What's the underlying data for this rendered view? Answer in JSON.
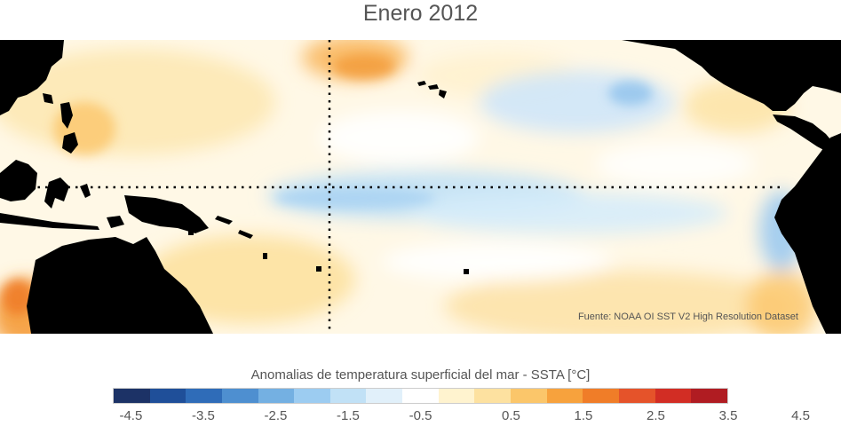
{
  "title": "Enero 2012",
  "source": "Fuente: NOAA OI SST V2 High Resolution Dataset",
  "colorbar": {
    "label": "Anomalias de temperatura superficial del mar - SSTA  [°C]",
    "colors": [
      "#1c3266",
      "#1f4f99",
      "#2f6cb8",
      "#4e8fd0",
      "#74b0e2",
      "#9cccf1",
      "#c1e1f6",
      "#e1f0fa",
      "#ffffff",
      "#fff3cf",
      "#fde1a0",
      "#fbc66a",
      "#f7a23d",
      "#f07d28",
      "#e5532a",
      "#d22d24",
      "#b01c22"
    ],
    "ticks": [
      "-4.5",
      "-3.5",
      "-2.5",
      "-1.5",
      "-0.5",
      "0.5",
      "1.5",
      "2.5",
      "3.5",
      "4.5"
    ]
  },
  "map": {
    "land_color": "#000000",
    "warm_color": "#fcd27f",
    "cool_color": "#9ccaf0",
    "reference_line": "dotted",
    "feature_names": [
      "asia-landmass",
      "maritime-continent",
      "new-guinea",
      "australia",
      "hawaii",
      "central-america",
      "south-america"
    ]
  }
}
